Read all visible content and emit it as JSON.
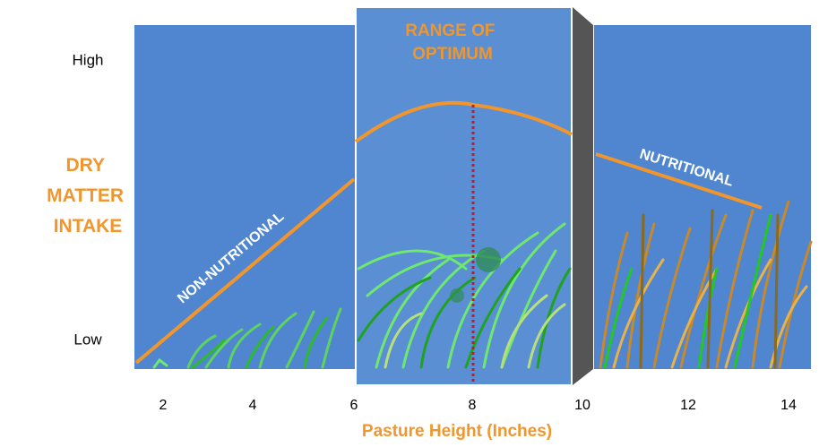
{
  "y_axis": {
    "title_lines": [
      "DRY",
      "MATTER",
      "INTAKE"
    ],
    "high": "High",
    "low": "Low"
  },
  "optimum_label_lines": [
    "RANGE OF",
    "OPTIMUM"
  ],
  "left_label": "NON-NUTRITIONAL",
  "right_label": "NUTRITIONAL",
  "x_axis": {
    "ticks": [
      2,
      4,
      6,
      8,
      10,
      12,
      14
    ],
    "title": "Pasture Height (Inches)"
  }
}
